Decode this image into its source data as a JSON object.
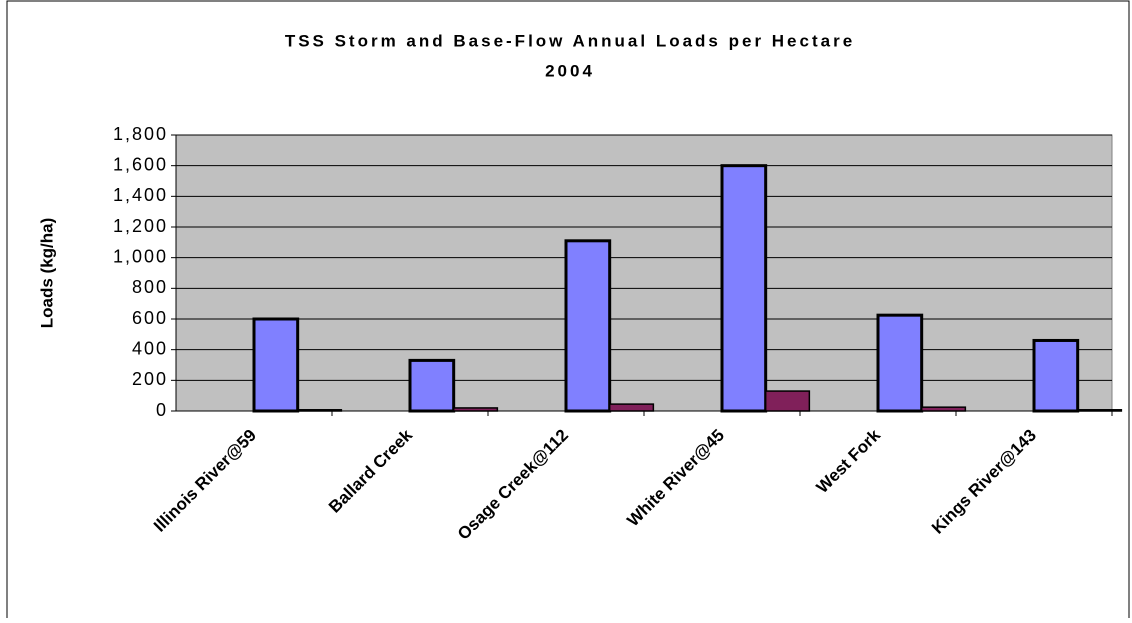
{
  "chart_data": {
    "type": "bar",
    "title": "TSS Storm and Base-Flow Annual Loads per Hectare",
    "subtitle": "2004",
    "y_label": "Loads (kg/ha)",
    "categories": [
      "Illinois River@59",
      "Ballard Creek",
      "Osage Creek@112",
      "White River@45",
      "West Fork",
      "Kings River@143"
    ],
    "series": [
      {
        "color": "#8080ff",
        "values": [
          600,
          330,
          1110,
          1600,
          625,
          460
        ]
      },
      {
        "color": "#80205a",
        "values": [
          8,
          20,
          45,
          130,
          25,
          8
        ]
      }
    ],
    "ylim": [
      0,
      1800
    ],
    "yticks": [
      0,
      200,
      400,
      600,
      800,
      {
        "value": 1000,
        "label": "1,000"
      },
      {
        "value": 1200,
        "label": "1,200"
      },
      {
        "value": 1400,
        "label": "1,400"
      },
      {
        "value": 1600,
        "label": "1,600"
      },
      {
        "value": 1800,
        "label": "1,800"
      }
    ],
    "grid": true,
    "plot_background": "#c0c0c0"
  }
}
